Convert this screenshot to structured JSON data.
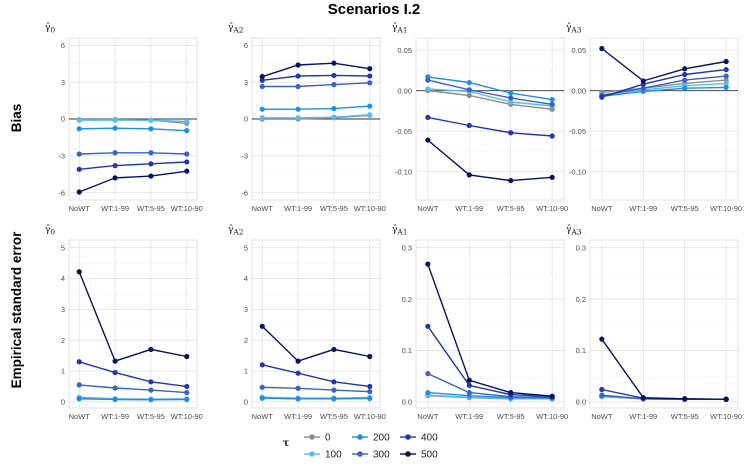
{
  "figure": {
    "title": "Scenarios I.2",
    "row_labels": [
      "Bias",
      "Empirical standard error"
    ]
  },
  "legend": {
    "title": "τ",
    "items": [
      {
        "label": "0",
        "color": "#8c8c8c"
      },
      {
        "label": "200",
        "color": "#1e8fe6"
      },
      {
        "label": "400",
        "color": "#2236b0"
      },
      {
        "label": "100",
        "color": "#56bdf0"
      },
      {
        "label": "300",
        "color": "#3a62c4"
      },
      {
        "label": "500",
        "color": "#07135e"
      }
    ]
  },
  "chart_data": [
    {
      "type": "line",
      "panel_title": "γ̂0",
      "title_main": "γ̂",
      "title_sub": "0",
      "categories": [
        "NoWT",
        "WT:1-99",
        "WT:5-95",
        "WT:10-90"
      ],
      "ylim": [
        -6.6,
        6.6
      ],
      "yticks": [
        -6,
        -3,
        0,
        3,
        6
      ],
      "ytick_labels": [
        "-6",
        "-3",
        "0",
        "3",
        "6"
      ],
      "zero_line": true,
      "series": [
        {
          "name": "0",
          "color": "#8c8c8c",
          "values": [
            -0.05,
            -0.05,
            -0.1,
            -0.35
          ]
        },
        {
          "name": "100",
          "color": "#56bdf0",
          "values": [
            -0.1,
            -0.1,
            -0.1,
            -0.2
          ]
        },
        {
          "name": "200",
          "color": "#1e8fe6",
          "values": [
            -0.8,
            -0.75,
            -0.8,
            -0.95
          ]
        },
        {
          "name": "300",
          "color": "#3a62c4",
          "values": [
            -2.85,
            -2.75,
            -2.75,
            -2.85
          ]
        },
        {
          "name": "400",
          "color": "#2236b0",
          "values": [
            -4.1,
            -3.8,
            -3.65,
            -3.5
          ]
        },
        {
          "name": "500",
          "color": "#07135e",
          "values": [
            -5.95,
            -4.8,
            -4.65,
            -4.25
          ]
        }
      ]
    },
    {
      "type": "line",
      "panel_title": "γ̂A2",
      "title_main": "γ̂",
      "title_sub": "A2",
      "categories": [
        "NoWT",
        "WT:1-99",
        "WT:5-95",
        "WT:10-90"
      ],
      "ylim": [
        -6.6,
        6.6
      ],
      "yticks": [
        -6,
        -3,
        0,
        3,
        6
      ],
      "ytick_labels": [
        "-6",
        "-3",
        "0",
        "3",
        "6"
      ],
      "zero_line": true,
      "series": [
        {
          "name": "0",
          "color": "#8c8c8c",
          "values": [
            0.0,
            0.0,
            0.1,
            0.3
          ]
        },
        {
          "name": "100",
          "color": "#56bdf0",
          "values": [
            0.1,
            0.1,
            0.15,
            0.35
          ]
        },
        {
          "name": "200",
          "color": "#1e8fe6",
          "values": [
            0.8,
            0.8,
            0.85,
            1.05
          ]
        },
        {
          "name": "300",
          "color": "#3a62c4",
          "values": [
            2.65,
            2.65,
            2.8,
            2.95
          ]
        },
        {
          "name": "400",
          "color": "#2236b0",
          "values": [
            3.15,
            3.5,
            3.55,
            3.5
          ]
        },
        {
          "name": "500",
          "color": "#07135e",
          "values": [
            3.45,
            4.4,
            4.55,
            4.1
          ]
        }
      ]
    },
    {
      "type": "line",
      "panel_title": "γ̂A1",
      "title_main": "γ̂",
      "title_sub": "A1",
      "categories": [
        "NoWT",
        "WT:1-99",
        "WT:5-95",
        "WT:10-90"
      ],
      "ylim": [
        -0.135,
        0.065
      ],
      "yticks": [
        -0.1,
        -0.05,
        0,
        0.05
      ],
      "ytick_labels": [
        "-0.10",
        "-0.05",
        "0.00",
        "0.05"
      ],
      "zero_line": true,
      "series": [
        {
          "name": "0",
          "color": "#8c8c8c",
          "values": [
            0.0,
            -0.006,
            -0.017,
            -0.023
          ]
        },
        {
          "name": "100",
          "color": "#56bdf0",
          "values": [
            0.002,
            -0.001,
            -0.014,
            -0.019
          ]
        },
        {
          "name": "200",
          "color": "#1e8fe6",
          "values": [
            0.017,
            0.01,
            -0.003,
            -0.011
          ]
        },
        {
          "name": "300",
          "color": "#3a62c4",
          "values": [
            0.013,
            0.001,
            -0.009,
            -0.017
          ]
        },
        {
          "name": "400",
          "color": "#2236b0",
          "values": [
            -0.033,
            -0.043,
            -0.052,
            -0.056
          ]
        },
        {
          "name": "500",
          "color": "#07135e",
          "values": [
            -0.061,
            -0.104,
            -0.111,
            -0.107
          ]
        }
      ]
    },
    {
      "type": "line",
      "panel_title": "γ̂A3",
      "title_main": "γ̂",
      "title_sub": "A3",
      "categories": [
        "NoWT",
        "WT:1-99",
        "WT:5-95",
        "WT:10-90"
      ],
      "ylim": [
        -0.135,
        0.065
      ],
      "yticks": [
        -0.1,
        -0.05,
        0,
        0.05
      ],
      "ytick_labels": [
        "-0.10",
        "-0.05",
        "0.00",
        "0.05"
      ],
      "zero_line": true,
      "series": [
        {
          "name": "0",
          "color": "#8c8c8c",
          "values": [
            -0.002,
            0.003,
            0.009,
            0.013
          ]
        },
        {
          "name": "100",
          "color": "#56bdf0",
          "values": [
            -0.005,
            0.001,
            0.006,
            0.009
          ]
        },
        {
          "name": "200",
          "color": "#1e8fe6",
          "values": [
            -0.007,
            -0.001,
            0.003,
            0.004
          ]
        },
        {
          "name": "300",
          "color": "#3a62c4",
          "values": [
            -0.006,
            0.003,
            0.013,
            0.018
          ]
        },
        {
          "name": "400",
          "color": "#2236b0",
          "values": [
            -0.008,
            0.008,
            0.02,
            0.026
          ]
        },
        {
          "name": "500",
          "color": "#07135e",
          "values": [
            0.052,
            0.012,
            0.027,
            0.036
          ]
        }
      ]
    },
    {
      "type": "line",
      "panel_title": "γ̂0",
      "title_main": "γ̂",
      "title_sub": "0",
      "categories": [
        "NoWT",
        "WT:1-99",
        "WT:5-95",
        "WT:10-90"
      ],
      "ylim": [
        -0.2,
        5.25
      ],
      "yticks": [
        0,
        1,
        2,
        3,
        4,
        5
      ],
      "ytick_labels": [
        "0",
        "1",
        "2",
        "3",
        "4",
        "5"
      ],
      "zero_line": false,
      "series": [
        {
          "name": "0",
          "color": "#8c8c8c",
          "values": [
            0.12,
            0.08,
            0.07,
            0.08
          ]
        },
        {
          "name": "100",
          "color": "#56bdf0",
          "values": [
            0.15,
            0.1,
            0.09,
            0.1
          ]
        },
        {
          "name": "200",
          "color": "#1e8fe6",
          "values": [
            0.1,
            0.08,
            0.07,
            0.08
          ]
        },
        {
          "name": "300",
          "color": "#3a62c4",
          "values": [
            0.55,
            0.45,
            0.38,
            0.3
          ]
        },
        {
          "name": "400",
          "color": "#2236b0",
          "values": [
            1.3,
            0.95,
            0.65,
            0.5
          ]
        },
        {
          "name": "500",
          "color": "#07135e",
          "values": [
            4.22,
            1.32,
            1.7,
            1.47
          ]
        }
      ]
    },
    {
      "type": "line",
      "panel_title": "γ̂A2",
      "title_main": "γ̂",
      "title_sub": "A2",
      "categories": [
        "NoWT",
        "WT:1-99",
        "WT:5-95",
        "WT:10-90"
      ],
      "ylim": [
        -0.2,
        5.25
      ],
      "yticks": [
        0,
        1,
        2,
        3,
        4,
        5
      ],
      "ytick_labels": [
        "0",
        "1",
        "2",
        "3",
        "4",
        "5"
      ],
      "zero_line": false,
      "series": [
        {
          "name": "0",
          "color": "#8c8c8c",
          "values": [
            0.12,
            0.1,
            0.1,
            0.12
          ]
        },
        {
          "name": "100",
          "color": "#56bdf0",
          "values": [
            0.15,
            0.12,
            0.12,
            0.14
          ]
        },
        {
          "name": "200",
          "color": "#1e8fe6",
          "values": [
            0.12,
            0.1,
            0.1,
            0.11
          ]
        },
        {
          "name": "300",
          "color": "#3a62c4",
          "values": [
            0.47,
            0.44,
            0.38,
            0.33
          ]
        },
        {
          "name": "400",
          "color": "#2236b0",
          "values": [
            1.2,
            0.93,
            0.65,
            0.5
          ]
        },
        {
          "name": "500",
          "color": "#07135e",
          "values": [
            2.45,
            1.32,
            1.7,
            1.47
          ]
        }
      ]
    },
    {
      "type": "line",
      "panel_title": "γ̂A1",
      "title_main": "γ̂",
      "title_sub": "A1",
      "categories": [
        "NoWT",
        "WT:1-99",
        "WT:5-95",
        "WT:10-90"
      ],
      "ylim": [
        -0.012,
        0.315
      ],
      "yticks": [
        0,
        0.1,
        0.2,
        0.3
      ],
      "ytick_labels": [
        "0.0",
        "0.1",
        "0.2",
        "0.3"
      ],
      "zero_line": false,
      "series": [
        {
          "name": "0",
          "color": "#8c8c8c",
          "values": [
            0.012,
            0.008,
            0.006,
            0.006
          ]
        },
        {
          "name": "100",
          "color": "#56bdf0",
          "values": [
            0.013,
            0.009,
            0.006,
            0.006
          ]
        },
        {
          "name": "200",
          "color": "#1e8fe6",
          "values": [
            0.018,
            0.012,
            0.008,
            0.007
          ]
        },
        {
          "name": "300",
          "color": "#3a62c4",
          "values": [
            0.055,
            0.018,
            0.01,
            0.008
          ]
        },
        {
          "name": "400",
          "color": "#2236b0",
          "values": [
            0.147,
            0.032,
            0.014,
            0.01
          ]
        },
        {
          "name": "500",
          "color": "#07135e",
          "values": [
            0.268,
            0.042,
            0.018,
            0.011
          ]
        }
      ]
    },
    {
      "type": "line",
      "panel_title": "γ̂A3",
      "title_main": "γ̂",
      "title_sub": "A3",
      "categories": [
        "NoWT",
        "WT:1-99",
        "WT:5-95",
        "WT:10-90"
      ],
      "ylim": [
        -0.012,
        0.315
      ],
      "yticks": [
        0,
        0.1,
        0.2,
        0.3
      ],
      "ytick_labels": [
        "0.0",
        "0.1",
        "0.2",
        "0.3"
      ],
      "zero_line": false,
      "series": [
        {
          "name": "0",
          "color": "#8c8c8c",
          "values": [
            0.01,
            0.006,
            0.005,
            0.005
          ]
        },
        {
          "name": "100",
          "color": "#56bdf0",
          "values": [
            0.011,
            0.006,
            0.005,
            0.005
          ]
        },
        {
          "name": "200",
          "color": "#1e8fe6",
          "values": [
            0.012,
            0.006,
            0.005,
            0.005
          ]
        },
        {
          "name": "300",
          "color": "#3a62c4",
          "values": [
            0.013,
            0.006,
            0.005,
            0.005
          ]
        },
        {
          "name": "400",
          "color": "#2236b0",
          "values": [
            0.024,
            0.007,
            0.006,
            0.005
          ]
        },
        {
          "name": "500",
          "color": "#07135e",
          "values": [
            0.122,
            0.008,
            0.006,
            0.005
          ]
        }
      ]
    }
  ]
}
